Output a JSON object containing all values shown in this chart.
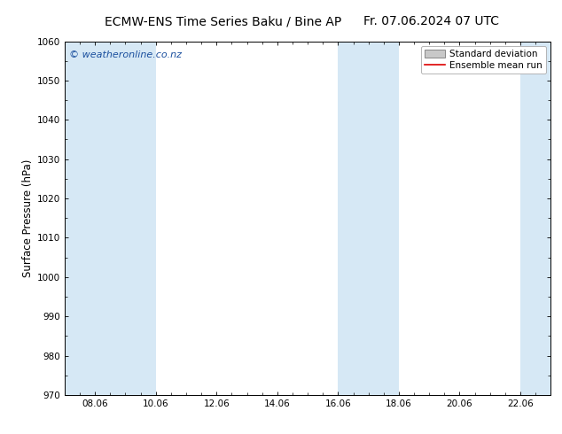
{
  "title_left": "ECMW-ENS Time Series Baku / Bine AP",
  "title_right": "Fr. 07.06.2024 07 UTC",
  "ylabel": "Surface Pressure (hPa)",
  "ylim": [
    970,
    1060
  ],
  "yticks": [
    970,
    980,
    990,
    1000,
    1010,
    1020,
    1030,
    1040,
    1050,
    1060
  ],
  "xlim": [
    0,
    16
  ],
  "xtick_labels": [
    "08.06",
    "10.06",
    "12.06",
    "14.06",
    "16.06",
    "18.06",
    "20.06",
    "22.06"
  ],
  "xtick_positions": [
    1,
    3,
    5,
    7,
    9,
    11,
    13,
    15
  ],
  "shaded_bands": [
    {
      "x_start": 0,
      "x_end": 1
    },
    {
      "x_start": 1,
      "x_end": 3
    },
    {
      "x_start": 9,
      "x_end": 10
    },
    {
      "x_start": 10,
      "x_end": 11
    },
    {
      "x_start": 15,
      "x_end": 16
    }
  ],
  "band_color": "#d6e8f5",
  "watermark": "© weatheronline.co.nz",
  "watermark_color": "#1a4f9e",
  "watermark_fontsize": 8,
  "legend_std_label": "Standard deviation",
  "legend_ens_label": "Ensemble mean run",
  "legend_std_facecolor": "#c8c8c8",
  "legend_std_edgecolor": "#888888",
  "legend_ens_color": "#dd0000",
  "bg_color": "#ffffff",
  "axis_color": "#000000",
  "title_fontsize": 10,
  "tick_fontsize": 7.5,
  "ylabel_fontsize": 8.5,
  "legend_fontsize": 7.5
}
